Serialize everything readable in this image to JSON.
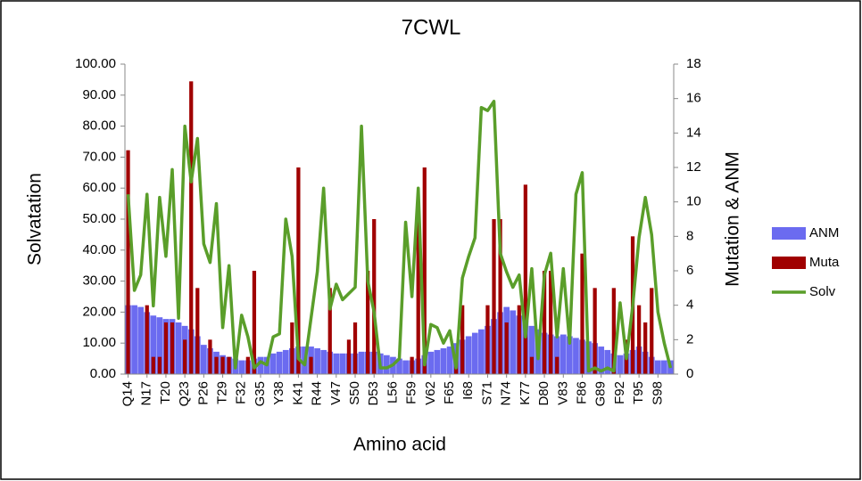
{
  "chart_data": {
    "type": "bar",
    "title": "7CWL",
    "x_label": "Amino acid",
    "y_label": "Solvatation",
    "y2_label": "Mutation & ANM",
    "categories": [
      "Q14",
      null,
      null,
      "N17",
      null,
      null,
      "T20",
      null,
      null,
      "Q23",
      null,
      null,
      "P26",
      null,
      null,
      "T29",
      null,
      null,
      "F32",
      null,
      null,
      "G35",
      null,
      null,
      "Y38",
      null,
      null,
      "K41",
      null,
      null,
      "R44",
      null,
      null,
      "V47",
      null,
      null,
      "S50",
      null,
      null,
      "D53",
      null,
      null,
      "L56",
      null,
      null,
      "F59",
      null,
      null,
      "V62",
      null,
      null,
      "F65",
      null,
      null,
      "I68",
      null,
      null,
      "S71",
      null,
      null,
      "N74",
      null,
      null,
      "K77",
      null,
      null,
      "D80",
      null,
      null,
      "V83",
      null,
      null,
      "F86",
      null,
      null,
      "G89",
      null,
      null,
      "F92",
      null,
      null,
      "T95",
      null,
      null,
      "S98",
      null,
      null
    ],
    "series": [
      {
        "name": "ANM",
        "color": "#6b6bf0",
        "type": "bar",
        "axis": "y2",
        "values": [
          4.0,
          4.0,
          3.9,
          3.6,
          3.4,
          3.3,
          3.2,
          3.2,
          3.0,
          2.8,
          2.6,
          2.2,
          1.7,
          1.5,
          1.3,
          1.1,
          1.0,
          0.9,
          0.8,
          0.8,
          0.9,
          1.0,
          1.0,
          1.2,
          1.3,
          1.4,
          1.5,
          1.6,
          1.6,
          1.6,
          1.5,
          1.4,
          1.3,
          1.2,
          1.2,
          1.2,
          1.2,
          1.3,
          1.3,
          1.3,
          1.2,
          1.1,
          1.0,
          0.9,
          0.8,
          0.8,
          0.9,
          1.1,
          1.3,
          1.4,
          1.5,
          1.6,
          1.8,
          2.0,
          2.2,
          2.4,
          2.6,
          2.8,
          3.2,
          3.6,
          3.9,
          3.7,
          3.4,
          3.1,
          2.8,
          2.6,
          2.4,
          2.3,
          2.2,
          2.3,
          2.2,
          2.1,
          2.0,
          1.9,
          1.8,
          1.6,
          1.4,
          1.2,
          1.1,
          1.2,
          1.4,
          1.6,
          1.3,
          1.0,
          0.8,
          0.8,
          0.8
        ]
      },
      {
        "name": "Muta",
        "color": "#a00000",
        "type": "bar",
        "axis": "y2",
        "values": [
          13,
          0,
          0,
          4,
          1,
          1,
          3,
          3,
          0,
          2,
          17,
          5,
          0,
          2,
          1,
          1,
          1,
          0,
          0,
          1,
          6,
          0,
          0,
          0,
          0,
          0,
          3,
          12,
          0,
          1,
          0,
          0,
          5,
          0,
          0,
          2,
          3,
          0,
          6,
          9,
          0,
          0,
          0,
          0,
          0,
          1,
          9,
          12,
          0,
          0,
          0,
          0,
          1,
          4,
          0,
          0,
          0,
          4,
          9,
          9,
          3,
          0,
          4,
          11,
          1,
          0,
          6,
          6,
          1,
          0,
          0,
          0,
          7,
          0,
          5,
          0,
          0,
          5,
          0,
          2,
          8,
          4,
          3,
          5,
          0,
          0,
          0
        ]
      },
      {
        "name": "Solv",
        "color": "#5a9e2a",
        "type": "line",
        "values": [
          58,
          27,
          32,
          58,
          22,
          57,
          38,
          66,
          18,
          80,
          62,
          76,
          42,
          36,
          55,
          15,
          35,
          2,
          19,
          12,
          2,
          4,
          3,
          12,
          13,
          50,
          38,
          5,
          3,
          18,
          33,
          60,
          21,
          29,
          24,
          26,
          28,
          80,
          30,
          20,
          2,
          2,
          3,
          5,
          49,
          25,
          60,
          3,
          16,
          15,
          10,
          14,
          2,
          31,
          38,
          44,
          86,
          85,
          88,
          39,
          33,
          28,
          32,
          12,
          34,
          5,
          32,
          39,
          12,
          34,
          10,
          58,
          65,
          1,
          2,
          1,
          2,
          1,
          23,
          5,
          22,
          44,
          57,
          45,
          20,
          10,
          2
        ]
      }
    ],
    "ylim": [
      0,
      100
    ],
    "yticks": [
      {
        "value": 0,
        "label": "0.00"
      },
      {
        "value": 10,
        "label": "10.00"
      },
      {
        "value": 20,
        "label": "20.00"
      },
      {
        "value": 30,
        "label": "30.00"
      },
      {
        "value": 40,
        "label": "40.00"
      },
      {
        "value": 50,
        "label": "50.00"
      },
      {
        "value": 60,
        "label": "60.00"
      },
      {
        "value": 70,
        "label": "70.00"
      },
      {
        "value": 80,
        "label": "80.00"
      },
      {
        "value": 90,
        "label": "90.00"
      },
      {
        "value": 100,
        "label": "100.00"
      }
    ],
    "y2lim": [
      0,
      18
    ],
    "y2ticks": [
      0,
      2,
      4,
      6,
      8,
      10,
      12,
      14,
      16,
      18
    ],
    "legend": "right",
    "grid": false
  }
}
